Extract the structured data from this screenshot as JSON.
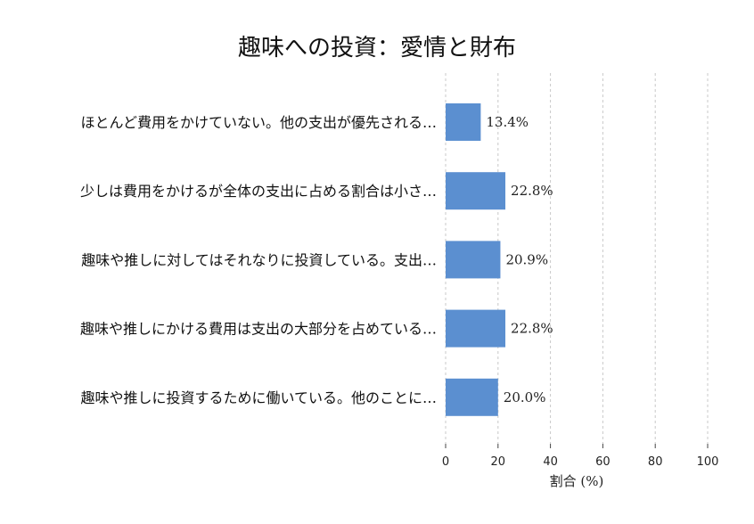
{
  "chart_data": {
    "type": "bar",
    "orientation": "horizontal",
    "title": "趣味への投資：愛情と財布",
    "xlabel": "割合 (%)",
    "ylabel": "",
    "xlim": [
      0,
      100
    ],
    "xticks": [
      0,
      20,
      40,
      60,
      80,
      100
    ],
    "grid": "vertical-dashed",
    "color": "#5b8fd0",
    "categories": [
      "ほとんど費用をかけていない。他の支出が優先される…",
      "少しは費用をかけるが全体の支出に占める割合は小さ…",
      "趣味や推しに対してはそれなりに投資している。支出…",
      "趣味や推しにかける費用は支出の大部分を占めている…",
      "趣味や推しに投資するために働いている。他のことに…"
    ],
    "values": [
      13.4,
      22.8,
      20.9,
      22.8,
      20.0
    ],
    "value_labels": [
      "13.4%",
      "22.8%",
      "20.9%",
      "22.8%",
      "20.0%"
    ]
  }
}
